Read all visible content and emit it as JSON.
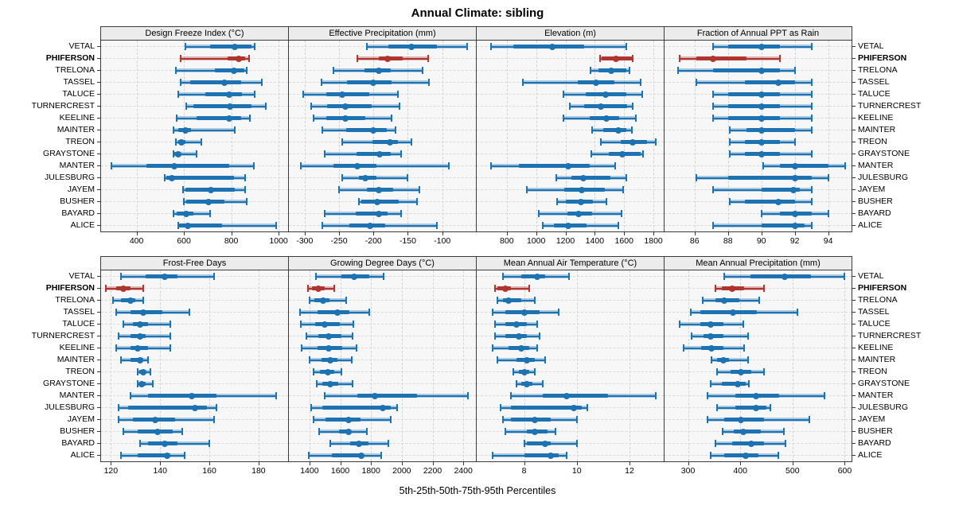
{
  "title": "Annual Climate: sibling",
  "caption": "5th-25th-50th-75th-95th Percentiles",
  "stations": [
    "VETAL",
    "PHIFERSON",
    "TRELONA",
    "TASSEL",
    "TALUCE",
    "TURNERCREST",
    "KEELINE",
    "MAINTER",
    "TREON",
    "GRAYSTONE",
    "MANTER",
    "JULESBURG",
    "JAYEM",
    "BUSHER",
    "BAYARD",
    "ALICE"
  ],
  "highlight_station": "PHIFERSON",
  "percentile_labels": [
    "5th",
    "25th",
    "50th",
    "75th",
    "95th"
  ],
  "colors": {
    "series": "#1d72b2",
    "highlight": "#b0352f",
    "grid": "#d2d2d2",
    "strip_bg": "#ececec",
    "panel_bg": "#f7f7f7",
    "border": "#3c3c3c"
  },
  "layout": {
    "rows": 2,
    "cols": 4,
    "grid": true,
    "labels_both_sides": true
  },
  "chart_data": [
    {
      "type": "scatter",
      "subtype": "percentile-interval-dotplot",
      "title": "Design Freeze Index (°C)",
      "xlim": [
        250,
        1040
      ],
      "ticks": [
        400,
        600,
        800,
        1000
      ],
      "rows": [
        [
          605,
          710,
          815,
          885,
          900
        ],
        [
          585,
          785,
          830,
          860,
          875
        ],
        [
          565,
          730,
          810,
          855,
          865
        ],
        [
          585,
          625,
          770,
          840,
          930
        ],
        [
          575,
          690,
          790,
          845,
          900
        ],
        [
          610,
          640,
          795,
          885,
          945
        ],
        [
          570,
          655,
          790,
          840,
          880
        ],
        [
          555,
          575,
          607,
          630,
          815
        ],
        [
          565,
          575,
          590,
          605,
          675
        ],
        [
          555,
          560,
          575,
          585,
          655
        ],
        [
          295,
          440,
          558,
          790,
          895
        ],
        [
          520,
          525,
          550,
          810,
          860
        ],
        [
          595,
          605,
          715,
          815,
          860
        ],
        [
          600,
          610,
          705,
          770,
          865
        ],
        [
          555,
          570,
          610,
          640,
          710
        ],
        [
          575,
          580,
          615,
          760,
          990
        ]
      ]
    },
    {
      "type": "scatter",
      "subtype": "percentile-interval-dotplot",
      "title": "Effective Precipitation (mm)",
      "xlim": [
        -323,
        -51
      ],
      "ticks": [
        -300,
        -250,
        -200,
        -150,
        -100
      ],
      "rows": [
        [
          -210,
          -178,
          -145,
          -108,
          -64
        ],
        [
          -223,
          -192,
          -180,
          -158,
          -121
        ],
        [
          -258,
          -213,
          -192,
          -175,
          -128
        ],
        [
          -276,
          -238,
          -200,
          -174,
          -119
        ],
        [
          -302,
          -269,
          -245,
          -206,
          -164
        ],
        [
          -291,
          -267,
          -241,
          -203,
          -162
        ],
        [
          -287,
          -269,
          -241,
          -212,
          -174
        ],
        [
          -274,
          -240,
          -200,
          -181,
          -168
        ],
        [
          -245,
          -202,
          -176,
          -164,
          -145
        ],
        [
          -271,
          -225,
          -191,
          -175,
          -160
        ],
        [
          -306,
          -258,
          -223,
          -196,
          -90
        ],
        [
          -245,
          -221,
          -212,
          -196,
          -151
        ],
        [
          -250,
          -210,
          -192,
          -171,
          -133
        ],
        [
          -221,
          -218,
          -194,
          -163,
          -137
        ],
        [
          -271,
          -226,
          -192,
          -180,
          -160
        ],
        [
          -274,
          -235,
          -205,
          -183,
          -108
        ]
      ]
    },
    {
      "type": "scatter",
      "subtype": "percentile-interval-dotplot",
      "title": "Elevation (m)",
      "xlim": [
        595,
        1870
      ],
      "ticks": [
        800,
        1000,
        1200,
        1400,
        1600,
        1800
      ],
      "rows": [
        [
          693,
          845,
          1109,
          1327,
          1613
        ],
        [
          1437,
          1448,
          1546,
          1655,
          1660
        ],
        [
          1371,
          1425,
          1511,
          1613,
          1636
        ],
        [
          907,
          1282,
          1407,
          1532,
          1711
        ],
        [
          1189,
          1336,
          1473,
          1613,
          1725
        ],
        [
          1232,
          1327,
          1443,
          1621,
          1657
        ],
        [
          1189,
          1363,
          1479,
          1568,
          1679
        ],
        [
          1380,
          1457,
          1559,
          1613,
          1654
        ],
        [
          1443,
          1577,
          1657,
          1755,
          1818
        ],
        [
          1375,
          1496,
          1586,
          1711,
          1729
        ],
        [
          693,
          880,
          1220,
          1363,
          1538
        ],
        [
          1139,
          1238,
          1323,
          1505,
          1613
        ],
        [
          939,
          1193,
          1309,
          1466,
          1591
        ],
        [
          1145,
          1202,
          1305,
          1389,
          1482
        ],
        [
          1018,
          1211,
          1288,
          1384,
          1582
        ],
        [
          1046,
          1121,
          1220,
          1345,
          1559
        ]
      ]
    },
    {
      "type": "scatter",
      "subtype": "percentile-interval-dotplot",
      "title": "Fraction of Annual PPT as Rain",
      "xlim": [
        84.2,
        95.4
      ],
      "ticks": [
        86,
        88,
        90,
        92,
        94
      ],
      "rows": [
        [
          87.1,
          88.0,
          90.0,
          91.1,
          93.0
        ],
        [
          85.1,
          86.1,
          87.1,
          89.1,
          91.1
        ],
        [
          85.0,
          87.1,
          90.0,
          91.1,
          92.0
        ],
        [
          86.1,
          89.0,
          91.0,
          92.0,
          93.0
        ],
        [
          87.1,
          88.0,
          90.0,
          91.1,
          93.0
        ],
        [
          87.1,
          88.0,
          90.0,
          91.1,
          93.0
        ],
        [
          87.1,
          88.0,
          90.0,
          91.1,
          93.0
        ],
        [
          88.1,
          89.1,
          90.0,
          92.0,
          93.0
        ],
        [
          88.1,
          89.0,
          90.0,
          91.1,
          92.0
        ],
        [
          88.1,
          89.0,
          90.0,
          91.1,
          93.0
        ],
        [
          90.1,
          91.1,
          92.0,
          94.0,
          95.0
        ],
        [
          86.1,
          88.0,
          92.0,
          93.0,
          94.0
        ],
        [
          87.1,
          90.0,
          91.9,
          92.3,
          93.0
        ],
        [
          88.1,
          89.0,
          91.0,
          92.0,
          93.0
        ],
        [
          90.0,
          91.1,
          92.0,
          93.0,
          94.0
        ],
        [
          87.1,
          90.0,
          92.0,
          92.6,
          93.0
        ]
      ]
    },
    {
      "type": "scatter",
      "subtype": "percentile-interval-dotplot",
      "title": "Frost-Free Days",
      "xlim": [
        116,
        192
      ],
      "ticks": [
        120,
        140,
        160,
        180
      ],
      "rows": [
        [
          124,
          134,
          142,
          147,
          162
        ],
        [
          118,
          122,
          125,
          128,
          133
        ],
        [
          121,
          124,
          128,
          130,
          133
        ],
        [
          122,
          128,
          133,
          141,
          152
        ],
        [
          125,
          129,
          132,
          135,
          144
        ],
        [
          123,
          128,
          132,
          134,
          144
        ],
        [
          122,
          128,
          131,
          135,
          144
        ],
        [
          124,
          128,
          132,
          133,
          135
        ],
        [
          131,
          131.5,
          133,
          134,
          136
        ],
        [
          131,
          132,
          132.5,
          134,
          137
        ],
        [
          128,
          135,
          153,
          163,
          187
        ],
        [
          123,
          127,
          154,
          159,
          163
        ],
        [
          123,
          129,
          138,
          146,
          162
        ],
        [
          125,
          131,
          139,
          145,
          149
        ],
        [
          132,
          135,
          142,
          147,
          160
        ],
        [
          124,
          131,
          143,
          144,
          150
        ]
      ]
    },
    {
      "type": "scatter",
      "subtype": "percentile-interval-dotplot",
      "title": "Growing Degree Days (°C)",
      "xlim": [
        1266,
        2482
      ],
      "ticks": [
        1400,
        1600,
        1800,
        2000,
        2200,
        2400
      ],
      "rows": [
        [
          1440,
          1610,
          1690,
          1790,
          1880
        ],
        [
          1390,
          1415,
          1460,
          1500,
          1560
        ],
        [
          1400,
          1433,
          1488,
          1530,
          1640
        ],
        [
          1340,
          1450,
          1583,
          1660,
          1787
        ],
        [
          1346,
          1436,
          1497,
          1597,
          1687
        ],
        [
          1381,
          1459,
          1523,
          1609,
          1681
        ],
        [
          1350,
          1450,
          1523,
          1614,
          1707
        ],
        [
          1398,
          1479,
          1536,
          1583,
          1675
        ],
        [
          1424,
          1467,
          1519,
          1562,
          1609
        ],
        [
          1445,
          1485,
          1535,
          1588,
          1681
        ],
        [
          1500,
          1710,
          1825,
          2100,
          2430
        ],
        [
          1410,
          1485,
          1875,
          1930,
          1970
        ],
        [
          1424,
          1505,
          1656,
          1730,
          1928
        ],
        [
          1462,
          1592,
          1652,
          1669,
          1773
        ],
        [
          1536,
          1666,
          1721,
          1782,
          1911
        ],
        [
          1393,
          1545,
          1735,
          1750,
          1868
        ]
      ]
    },
    {
      "type": "scatter",
      "subtype": "percentile-interval-dotplot",
      "title": "Mean Annual Air Temperature (°C)",
      "xlim": [
        6.2,
        13.3
      ],
      "ticks": [
        8,
        10,
        12
      ],
      "rows": [
        [
          7.2,
          7.9,
          8.5,
          8.8,
          9.7
        ],
        [
          6.9,
          7.0,
          7.3,
          7.5,
          8.2
        ],
        [
          7.0,
          7.2,
          7.4,
          7.9,
          8.4
        ],
        [
          6.8,
          7.3,
          8.0,
          8.6,
          9.3
        ],
        [
          6.9,
          7.3,
          7.7,
          8.1,
          8.5
        ],
        [
          6.9,
          7.3,
          7.8,
          8.1,
          8.6
        ],
        [
          6.8,
          7.4,
          7.9,
          8.2,
          8.5
        ],
        [
          7.0,
          7.7,
          8.1,
          8.4,
          8.8
        ],
        [
          7.6,
          7.8,
          8.0,
          8.2,
          8.4
        ],
        [
          7.7,
          7.9,
          8.1,
          8.3,
          8.7
        ],
        [
          7.5,
          8.7,
          9.6,
          11.2,
          13.0
        ],
        [
          7.1,
          7.5,
          9.9,
          10.2,
          10.4
        ],
        [
          7.2,
          7.5,
          8.4,
          9.0,
          10.0
        ],
        [
          7.3,
          8.1,
          8.4,
          8.9,
          9.2
        ],
        [
          8.0,
          8.1,
          8.8,
          9.0,
          10.0
        ],
        [
          6.8,
          8.0,
          9.0,
          9.3,
          9.6
        ]
      ]
    },
    {
      "type": "scatter",
      "subtype": "percentile-interval-dotplot",
      "title": "Mean Annual Precipitation (mm)",
      "xlim": [
        255,
        613
      ],
      "ticks": [
        300,
        400,
        500,
        600
      ],
      "rows": [
        [
          370,
          420,
          485,
          535,
          600
        ],
        [
          353,
          365,
          385,
          408,
          445
        ],
        [
          328,
          353,
          370,
          398,
          436
        ],
        [
          305,
          323,
          386,
          431,
          510
        ],
        [
          284,
          323,
          343,
          368,
          406
        ],
        [
          307,
          330,
          344,
          367,
          415
        ],
        [
          292,
          325,
          345,
          368,
          408
        ],
        [
          345,
          356,
          368,
          378,
          415
        ],
        [
          356,
          381,
          402,
          421,
          446
        ],
        [
          343,
          365,
          395,
          411,
          417
        ],
        [
          338,
          391,
          430,
          474,
          561
        ],
        [
          355,
          390,
          430,
          450,
          457
        ],
        [
          337,
          370,
          401,
          446,
          533
        ],
        [
          366,
          387,
          406,
          440,
          483
        ],
        [
          352,
          385,
          421,
          445,
          486
        ],
        [
          343,
          370,
          410,
          435,
          473
        ]
      ]
    }
  ]
}
